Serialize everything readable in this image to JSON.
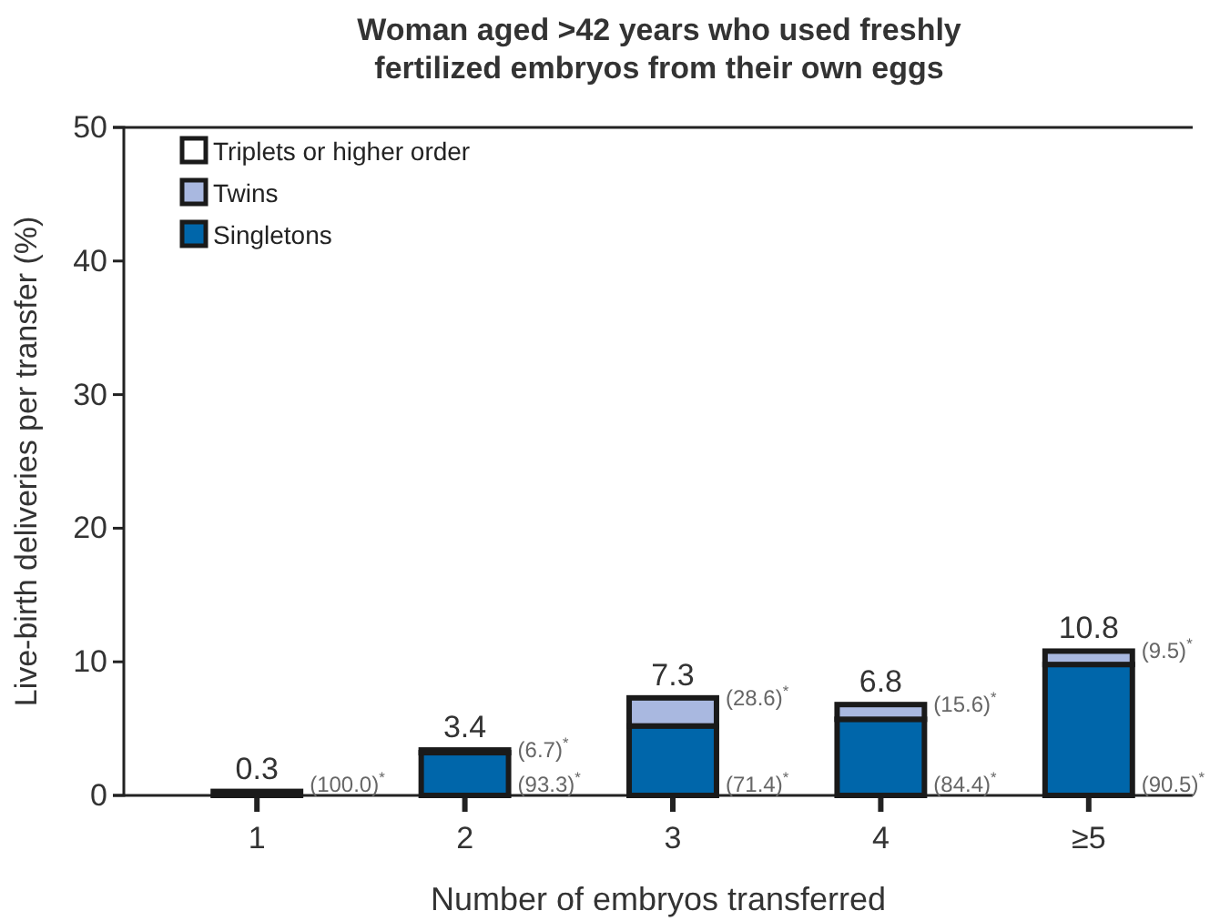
{
  "chart_data": {
    "type": "bar",
    "stacked": true,
    "title": "Woman aged >42 years who used freshly\nfertilized embryos from their own eggs",
    "xlabel": "Number of embryos transferred",
    "ylabel": "Live-birth deliveries per transfer (%)",
    "categories": [
      "1",
      "2",
      "3",
      "4",
      "≥5"
    ],
    "series": [
      {
        "name": "Singletons",
        "color": "#0066aa",
        "values": [
          0.3,
          3.2,
          5.2,
          5.7,
          9.8
        ]
      },
      {
        "name": "Twins",
        "color": "#a9b8e0",
        "values": [
          0,
          0.2,
          2.1,
          1.1,
          1.0
        ]
      },
      {
        "name": "Triplets or higher order",
        "color": "#ffffff",
        "values": [
          0,
          0,
          0,
          0,
          0
        ]
      }
    ],
    "totals": [
      "0.3",
      "3.4",
      "7.3",
      "6.8",
      "10.8"
    ],
    "annotations": [
      {
        "text": "(100.0)$^{*}$",
        "x": "1",
        "y": 0.8
      },
      {
        "text": "(93.3)$^{*}$",
        "x": "2",
        "y": 0.8
      },
      {
        "text": "(6.7)$^{*}$",
        "x": "2",
        "y": 3.4
      },
      {
        "text": "(71.4)$^{*}$",
        "x": "3",
        "y": 0.8
      },
      {
        "text": "(28.6)$^{*}$",
        "x": "3",
        "y": 7.3
      },
      {
        "text": "(84.4)$^{*}$",
        "x": "4",
        "y": 0.8
      },
      {
        "text": "(15.6)$^{*}$",
        "x": "4",
        "y": 6.8
      },
      {
        "text": "(90.5)$^{*}$",
        "x": "≥5",
        "y": 0.8
      },
      {
        "text": "(9.5)$^{*}$",
        "x": "≥5",
        "y": 10.8
      }
    ],
    "ylim": [
      0,
      50
    ],
    "yticks": [
      0,
      10,
      20,
      30,
      40,
      50
    ],
    "grid": false,
    "legend": "top left"
  }
}
